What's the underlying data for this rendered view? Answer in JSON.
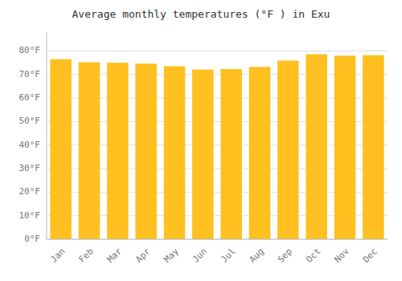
{
  "chart_data": {
    "type": "bar",
    "title": "Average monthly temperatures (°F ) in Exu",
    "categories": [
      "Jan",
      "Feb",
      "Mar",
      "Apr",
      "May",
      "Jun",
      "Jul",
      "Aug",
      "Sep",
      "Oct",
      "Nov",
      "Dec"
    ],
    "values": [
      76.5,
      75.2,
      75.0,
      74.6,
      73.5,
      72.1,
      72.3,
      73.2,
      75.9,
      78.6,
      78.0,
      78.2
    ],
    "color": "#FFC020",
    "ylim": [
      0,
      88
    ],
    "yticks": [
      {
        "value": 0,
        "label": "0°F"
      },
      {
        "value": 10,
        "label": "10°F"
      },
      {
        "value": 20,
        "label": "20°F"
      },
      {
        "value": 30,
        "label": "30°F"
      },
      {
        "value": 40,
        "label": "40°F"
      },
      {
        "value": 50,
        "label": "50°F"
      },
      {
        "value": 60,
        "label": "60°F"
      },
      {
        "value": 70,
        "label": "70°F"
      },
      {
        "value": 80,
        "label": "80°F"
      }
    ],
    "grid": true
  }
}
